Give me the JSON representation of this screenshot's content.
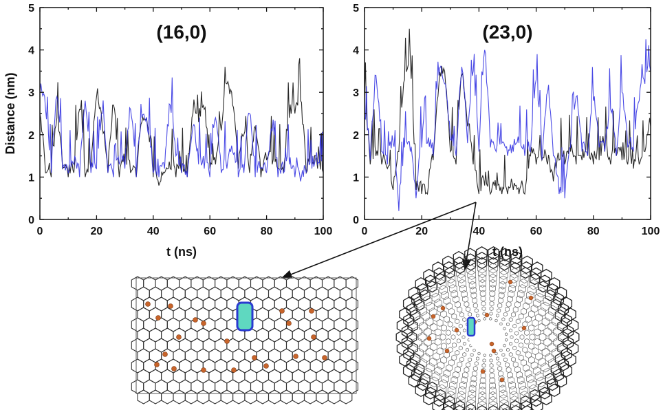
{
  "colors": {
    "series_black": "#111111",
    "series_blue": "#2a2ae0",
    "atom_orange": "#c8642a",
    "molecule_cyan": "#5fd8c0",
    "molecule_blue": "#2a3ad0"
  },
  "chart_data": [
    {
      "type": "line",
      "title": "(16,0)",
      "xlabel": "t (ns)",
      "ylabel": "Distance (nm)",
      "xlim": [
        0,
        100
      ],
      "ylim": [
        0,
        5
      ],
      "xticks": [
        "0",
        "20",
        "40",
        "60",
        "80",
        "100"
      ],
      "yticks": [
        "0",
        "1",
        "2",
        "3",
        "4",
        "5"
      ],
      "grid": false,
      "x": [
        0,
        2,
        4,
        6,
        8,
        10,
        12,
        14,
        16,
        18,
        20,
        22,
        24,
        26,
        28,
        30,
        32,
        34,
        36,
        38,
        40,
        42,
        44,
        46,
        48,
        50,
        52,
        54,
        56,
        58,
        60,
        62,
        64,
        66,
        68,
        70,
        72,
        74,
        76,
        78,
        80,
        82,
        84,
        86,
        88,
        90,
        92,
        94,
        96,
        98,
        100
      ],
      "series": [
        {
          "color": "#111111",
          "values": [
            2.5,
            1.1,
            1.0,
            2.4,
            1.2,
            1.0,
            1.1,
            2.6,
            1.0,
            1.2,
            2.9,
            2.2,
            1.1,
            2.7,
            1.0,
            1.3,
            1.1,
            1.0,
            2.3,
            2.2,
            1.0,
            0.8,
            1.1,
            1.2,
            1.0,
            1.1,
            1.0,
            2.5,
            2.3,
            2.6,
            1.2,
            1.3,
            2.1,
            3.2,
            2.7,
            1.2,
            2.0,
            1.1,
            2.2,
            1.0,
            1.4,
            1.3,
            1.2,
            1.1,
            2.4,
            2.5,
            2.8,
            1.1,
            1.3,
            1.2,
            1.1
          ]
        },
        {
          "color": "#2a2ae0",
          "values": [
            3.0,
            2.6,
            1.1,
            2.9,
            1.2,
            1.1,
            1.3,
            1.0,
            2.8,
            1.1,
            1.2,
            2.5,
            1.1,
            1.0,
            1.3,
            1.2,
            2.6,
            1.0,
            2.4,
            2.1,
            1.1,
            1.0,
            1.2,
            2.7,
            1.5,
            1.1,
            1.0,
            2.2,
            1.3,
            1.2,
            1.0,
            2.4,
            1.1,
            1.2,
            1.6,
            1.0,
            1.1,
            2.5,
            1.0,
            1.2,
            1.1,
            2.1,
            1.0,
            1.1,
            1.3,
            1.0,
            0.9,
            1.1,
            1.2,
            1.3,
            1.1
          ]
        }
      ]
    },
    {
      "type": "line",
      "title": "(23,0)",
      "xlabel": "t (ns)",
      "ylabel": "",
      "xlim": [
        0,
        100
      ],
      "ylim": [
        0,
        5
      ],
      "xticks": [
        "0",
        "20",
        "40",
        "60",
        "80",
        "100"
      ],
      "yticks": [
        "0",
        "1",
        "2",
        "3",
        "4",
        "5"
      ],
      "grid": false,
      "x": [
        0,
        2,
        4,
        6,
        8,
        10,
        12,
        14,
        16,
        18,
        20,
        22,
        24,
        26,
        28,
        30,
        32,
        34,
        36,
        38,
        40,
        42,
        44,
        46,
        48,
        50,
        52,
        54,
        56,
        58,
        60,
        62,
        64,
        66,
        68,
        70,
        72,
        74,
        76,
        78,
        80,
        82,
        84,
        86,
        88,
        90,
        92,
        94,
        96,
        98,
        100
      ],
      "series": [
        {
          "color": "#111111",
          "values": [
            2.9,
            1.3,
            1.5,
            1.3,
            1.2,
            0.7,
            1.6,
            3.3,
            3.8,
            0.7,
            0.6,
            0.6,
            1.4,
            3.2,
            3.5,
            1.6,
            1.3,
            3.4,
            2.2,
            1.3,
            0.6,
            0.8,
            0.6,
            0.7,
            0.6,
            0.6,
            0.7,
            0.6,
            0.6,
            1.5,
            1.3,
            1.4,
            1.3,
            0.9,
            1.4,
            1.3,
            1.6,
            1.3,
            1.4,
            1.5,
            1.3,
            1.4,
            1.6,
            1.3,
            1.5,
            1.4,
            1.3,
            1.2,
            1.3,
            1.6,
            2.2
          ]
        },
        {
          "color": "#2a2ae0",
          "values": [
            2.4,
            1.4,
            3.4,
            1.6,
            1.3,
            1.8,
            0.2,
            1.7,
            1.6,
            0.5,
            1.7,
            1.8,
            1.5,
            3.4,
            3.2,
            1.9,
            1.5,
            3.6,
            1.8,
            3.5,
            1.6,
            4.0,
            1.7,
            1.6,
            1.8,
            1.5,
            1.6,
            1.8,
            1.5,
            1.6,
            3.3,
            1.4,
            3.0,
            1.5,
            0.6,
            0.5,
            1.7,
            2.9,
            1.6,
            1.5,
            2.8,
            1.7,
            1.6,
            2.6,
            1.5,
            3.0,
            1.7,
            1.6,
            2.8,
            3.2,
            3.5
          ]
        }
      ],
      "annotation": {
        "points_to_t": 40,
        "points_to_distance": 0.55
      }
    }
  ],
  "illustrations": [
    {
      "name": "nanotube-side-view"
    },
    {
      "name": "nanotube-end-view"
    }
  ]
}
